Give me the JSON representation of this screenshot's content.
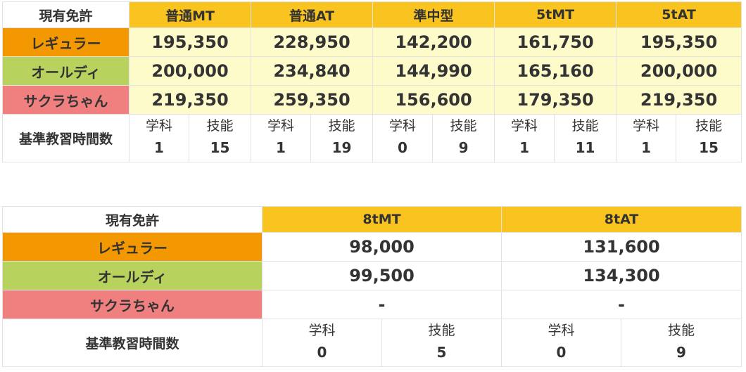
{
  "table1": {
    "corner": "現有免許",
    "headers": [
      "普通MT",
      "普通AT",
      "準中型",
      "5tMT",
      "5tAT"
    ],
    "rows": [
      {
        "label": "レギュラー",
        "values": [
          "195,350",
          "228,950",
          "142,200",
          "161,750",
          "195,350"
        ]
      },
      {
        "label": "オールディ",
        "values": [
          "200,000",
          "234,840",
          "144,990",
          "165,160",
          "200,000"
        ]
      },
      {
        "label": "サクラちゃん",
        "values": [
          "219,350",
          "259,350",
          "156,600",
          "179,350",
          "219,350"
        ]
      }
    ],
    "hours_label": "基準教習時間数",
    "hours": [
      {
        "sub": "学科",
        "num": "1"
      },
      {
        "sub": "技能",
        "num": "15"
      },
      {
        "sub": "学科",
        "num": "1"
      },
      {
        "sub": "技能",
        "num": "19"
      },
      {
        "sub": "学科",
        "num": "0"
      },
      {
        "sub": "技能",
        "num": "9"
      },
      {
        "sub": "学科",
        "num": "1"
      },
      {
        "sub": "技能",
        "num": "11"
      },
      {
        "sub": "学科",
        "num": "1"
      },
      {
        "sub": "技能",
        "num": "15"
      }
    ]
  },
  "table2": {
    "corner": "現有免許",
    "headers": [
      "8tMT",
      "8tAT"
    ],
    "rows": [
      {
        "label": "レギュラー",
        "values": [
          "98,000",
          "131,600"
        ]
      },
      {
        "label": "オールディ",
        "values": [
          "99,500",
          "134,300"
        ]
      },
      {
        "label": "サクラちゃん",
        "values": [
          "-",
          "-"
        ]
      }
    ],
    "hours_label": "基準教習時間数",
    "hours": [
      {
        "sub": "学科",
        "num": "0"
      },
      {
        "sub": "技能",
        "num": "5"
      },
      {
        "sub": "学科",
        "num": "0"
      },
      {
        "sub": "技能",
        "num": "9"
      }
    ]
  },
  "colors": {
    "header": "#f9c41f",
    "value_bg": "#fefbcb",
    "regular": "#f39800",
    "oldie": "#b8d25e",
    "sakura": "#f08080"
  }
}
